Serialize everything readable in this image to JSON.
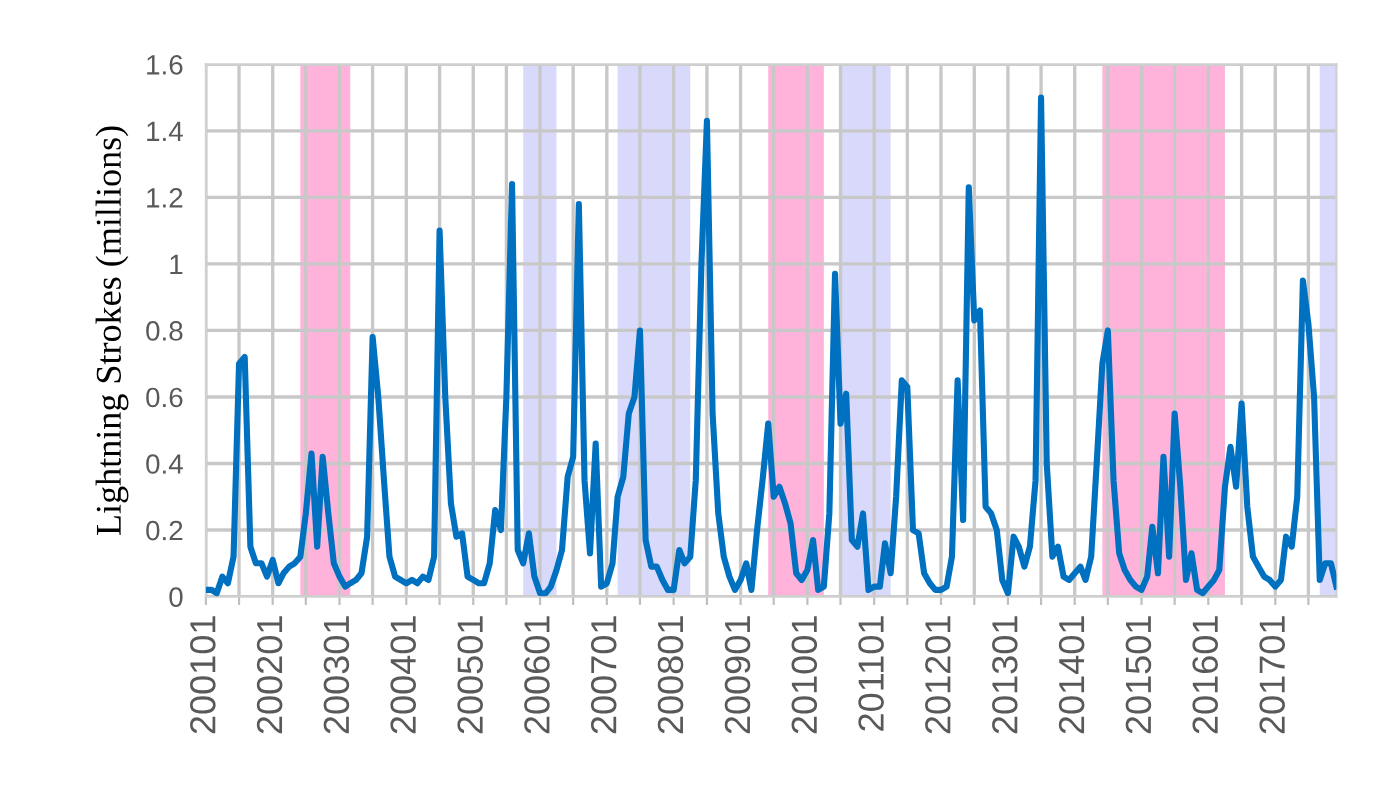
{
  "chart_data": {
    "type": "line",
    "ylabel": "Lightning Strokes (millions)",
    "x": [
      "2001-01",
      "2001-02",
      "2001-03",
      "2001-04",
      "2001-05",
      "2001-06",
      "2001-07",
      "2001-08",
      "2001-09",
      "2001-10",
      "2001-11",
      "2001-12",
      "2002-01",
      "2002-02",
      "2002-03",
      "2002-04",
      "2002-05",
      "2002-06",
      "2002-07",
      "2002-08",
      "2002-09",
      "2002-10",
      "2002-11",
      "2002-12",
      "2003-01",
      "2003-02",
      "2003-03",
      "2003-04",
      "2003-05",
      "2003-06",
      "2003-07",
      "2003-08",
      "2003-09",
      "2003-10",
      "2003-11",
      "2003-12",
      "2004-01",
      "2004-02",
      "2004-03",
      "2004-04",
      "2004-05",
      "2004-06",
      "2004-07",
      "2004-08",
      "2004-09",
      "2004-10",
      "2004-11",
      "2004-12",
      "2005-01",
      "2005-02",
      "2005-03",
      "2005-04",
      "2005-05",
      "2005-06",
      "2005-07",
      "2005-08",
      "2005-09",
      "2005-10",
      "2005-11",
      "2005-12",
      "2006-01",
      "2006-02",
      "2006-03",
      "2006-04",
      "2006-05",
      "2006-06",
      "2006-07",
      "2006-08",
      "2006-09",
      "2006-10",
      "2006-11",
      "2006-12",
      "2007-01",
      "2007-02",
      "2007-03",
      "2007-04",
      "2007-05",
      "2007-06",
      "2007-07",
      "2007-08",
      "2007-09",
      "2007-10",
      "2007-11",
      "2007-12",
      "2008-01",
      "2008-02",
      "2008-03",
      "2008-04",
      "2008-05",
      "2008-06",
      "2008-07",
      "2008-08",
      "2008-09",
      "2008-10",
      "2008-11",
      "2008-12",
      "2009-01",
      "2009-02",
      "2009-03",
      "2009-04",
      "2009-05",
      "2009-06",
      "2009-07",
      "2009-08",
      "2009-09",
      "2009-10",
      "2009-11",
      "2009-12",
      "2010-01",
      "2010-02",
      "2010-03",
      "2010-04",
      "2010-05",
      "2010-06",
      "2010-07",
      "2010-08",
      "2010-09",
      "2010-10",
      "2010-11",
      "2010-12",
      "2011-01",
      "2011-02",
      "2011-03",
      "2011-04",
      "2011-05",
      "2011-06",
      "2011-07",
      "2011-08",
      "2011-09",
      "2011-10",
      "2011-11",
      "2011-12",
      "2012-01",
      "2012-02",
      "2012-03",
      "2012-04",
      "2012-05",
      "2012-06",
      "2012-07",
      "2012-08",
      "2012-09",
      "2012-10",
      "2012-11",
      "2012-12",
      "2013-01",
      "2013-02",
      "2013-03",
      "2013-04",
      "2013-05",
      "2013-06",
      "2013-07",
      "2013-08",
      "2013-09",
      "2013-10",
      "2013-11",
      "2013-12",
      "2014-01",
      "2014-02",
      "2014-03",
      "2014-04",
      "2014-05",
      "2014-06",
      "2014-07",
      "2014-08",
      "2014-09",
      "2014-10",
      "2014-11",
      "2014-12",
      "2015-01",
      "2015-02",
      "2015-03",
      "2015-04",
      "2015-05",
      "2015-06",
      "2015-07",
      "2015-08",
      "2015-09",
      "2015-10",
      "2015-11",
      "2015-12",
      "2016-01",
      "2016-02",
      "2016-03",
      "2016-04",
      "2016-05",
      "2016-06",
      "2016-07",
      "2016-08",
      "2016-09",
      "2016-10",
      "2016-11",
      "2016-12",
      "2017-01",
      "2017-02",
      "2017-03",
      "2017-04",
      "2017-05",
      "2017-06",
      "2017-07",
      "2017-08",
      "2017-09",
      "2017-10",
      "2017-11",
      "2017-12"
    ],
    "series": [
      {
        "color": "#0070c0",
        "values": [
          0.02,
          0.02,
          0.01,
          0.06,
          0.04,
          0.12,
          0.7,
          0.72,
          0.15,
          0.1,
          0.1,
          0.06,
          0.11,
          0.04,
          0.07,
          0.09,
          0.1,
          0.12,
          0.25,
          0.43,
          0.15,
          0.42,
          0.25,
          0.1,
          0.06,
          0.03,
          0.04,
          0.05,
          0.07,
          0.18,
          0.78,
          0.6,
          0.35,
          0.12,
          0.06,
          0.05,
          0.04,
          0.05,
          0.04,
          0.06,
          0.05,
          0.12,
          1.1,
          0.6,
          0.28,
          0.18,
          0.19,
          0.06,
          0.05,
          0.04,
          0.04,
          0.1,
          0.26,
          0.2,
          0.6,
          1.24,
          0.14,
          0.1,
          0.19,
          0.06,
          0.01,
          0.01,
          0.03,
          0.08,
          0.14,
          0.36,
          0.42,
          1.18,
          0.35,
          0.13,
          0.46,
          0.03,
          0.04,
          0.1,
          0.3,
          0.36,
          0.55,
          0.6,
          0.8,
          0.17,
          0.09,
          0.09,
          0.05,
          0.02,
          0.02,
          0.14,
          0.1,
          0.12,
          0.35,
          1.0,
          1.43,
          0.55,
          0.25,
          0.12,
          0.06,
          0.02,
          0.05,
          0.1,
          0.02,
          0.2,
          0.35,
          0.52,
          0.3,
          0.33,
          0.28,
          0.22,
          0.07,
          0.05,
          0.08,
          0.17,
          0.02,
          0.03,
          0.25,
          0.97,
          0.52,
          0.61,
          0.17,
          0.15,
          0.25,
          0.02,
          0.03,
          0.03,
          0.16,
          0.07,
          0.3,
          0.65,
          0.63,
          0.2,
          0.19,
          0.07,
          0.04,
          0.02,
          0.02,
          0.03,
          0.12,
          0.65,
          0.23,
          1.23,
          0.83,
          0.86,
          0.27,
          0.25,
          0.2,
          0.05,
          0.01,
          0.18,
          0.15,
          0.09,
          0.15,
          0.35,
          1.5,
          0.4,
          0.12,
          0.15,
          0.06,
          0.05,
          0.07,
          0.09,
          0.05,
          0.12,
          0.4,
          0.7,
          0.8,
          0.35,
          0.13,
          0.08,
          0.05,
          0.03,
          0.02,
          0.06,
          0.21,
          0.07,
          0.42,
          0.12,
          0.55,
          0.33,
          0.05,
          0.13,
          0.02,
          0.01,
          0.03,
          0.05,
          0.08,
          0.33,
          0.45,
          0.33,
          0.58,
          0.27,
          0.12,
          0.09,
          0.06,
          0.05,
          0.03,
          0.05,
          0.18,
          0.15,
          0.3,
          0.95,
          0.82,
          0.6,
          0.05,
          0.1,
          0.1,
          0.03
        ]
      }
    ],
    "xlim": [
      "2001-01",
      "2017-12"
    ],
    "xticks": [
      {
        "value": "2001-01",
        "label": "200101"
      },
      {
        "value": "2001-07",
        "label": null
      },
      {
        "value": "2002-01",
        "label": "200201"
      },
      {
        "value": "2002-07",
        "label": null
      },
      {
        "value": "2003-01",
        "label": "200301"
      },
      {
        "value": "2003-07",
        "label": null
      },
      {
        "value": "2004-01",
        "label": "200401"
      },
      {
        "value": "2004-07",
        "label": null
      },
      {
        "value": "2005-01",
        "label": "200501"
      },
      {
        "value": "2005-07",
        "label": null
      },
      {
        "value": "2006-01",
        "label": "200601"
      },
      {
        "value": "2006-07",
        "label": null
      },
      {
        "value": "2007-01",
        "label": "200701"
      },
      {
        "value": "2007-07",
        "label": null
      },
      {
        "value": "2008-01",
        "label": "200801"
      },
      {
        "value": "2008-07",
        "label": null
      },
      {
        "value": "2009-01",
        "label": "200901"
      },
      {
        "value": "2009-07",
        "label": null
      },
      {
        "value": "2010-01",
        "label": "201001"
      },
      {
        "value": "2010-07",
        "label": null
      },
      {
        "value": "2011-01",
        "label": "201101"
      },
      {
        "value": "2011-07",
        "label": null
      },
      {
        "value": "2012-01",
        "label": "201201"
      },
      {
        "value": "2012-07",
        "label": null
      },
      {
        "value": "2013-01",
        "label": "201301"
      },
      {
        "value": "2013-07",
        "label": null
      },
      {
        "value": "2014-01",
        "label": "201401"
      },
      {
        "value": "2014-07",
        "label": null
      },
      {
        "value": "2015-01",
        "label": "201501"
      },
      {
        "value": "2015-07",
        "label": null
      },
      {
        "value": "2016-01",
        "label": "201601"
      },
      {
        "value": "2016-07",
        "label": null
      },
      {
        "value": "2017-01",
        "label": "201701"
      },
      {
        "value": "2017-07",
        "label": null
      }
    ],
    "ylim": [
      0,
      1.6
    ],
    "yticks": [
      0,
      0.2,
      0.4,
      0.6,
      0.8,
      1,
      1.2,
      1.4,
      1.6
    ],
    "bands": [
      {
        "axis": "x",
        "from": "2002-06",
        "to": "2003-03",
        "color": "#ffb3da"
      },
      {
        "axis": "x",
        "from": "2005-10",
        "to": "2006-04",
        "color": "#d9d9fc"
      },
      {
        "axis": "x",
        "from": "2007-03",
        "to": "2008-04",
        "color": "#d9d9fc"
      },
      {
        "axis": "x",
        "from": "2009-06",
        "to": "2010-04",
        "color": "#ffb3da"
      },
      {
        "axis": "x",
        "from": "2010-07",
        "to": "2011-04",
        "color": "#d9d9fc"
      },
      {
        "axis": "x",
        "from": "2014-06",
        "to": "2016-04",
        "color": "#ffb3da"
      },
      {
        "axis": "x",
        "from": "2017-09",
        "to": "2017-12",
        "color": "#d9d9fc"
      }
    ],
    "grid": true,
    "legend": false,
    "marker": "none",
    "line_style": "solid"
  }
}
